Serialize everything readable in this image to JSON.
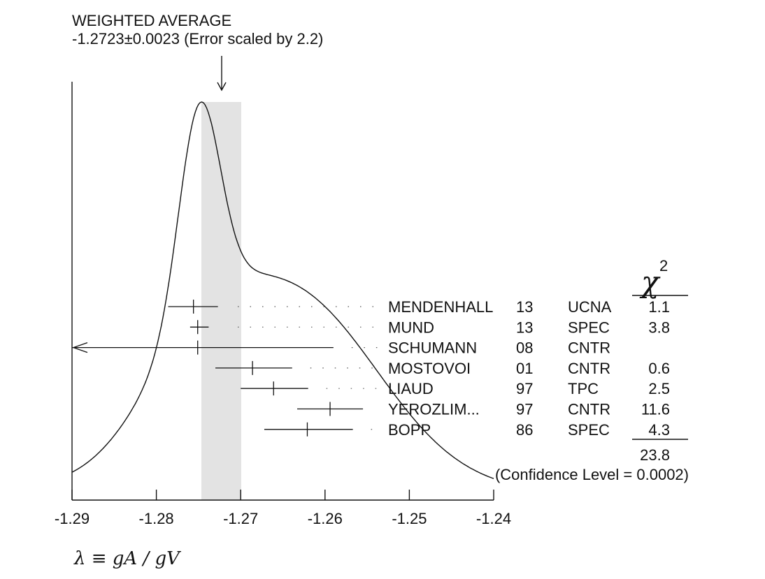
{
  "chart_data": {
    "type": "ideogram",
    "title": "WEIGHTED AVERAGE",
    "subtitle": "-1.2723±0.0023 (Error scaled by 2.2)",
    "average": {
      "value": -1.2723,
      "error": 0.0023,
      "band": [
        -1.2746,
        -1.27
      ]
    },
    "xlabel": "λ ≡ gA / gV",
    "xlim": [
      -1.29,
      -1.24
    ],
    "xticks": [
      -1.29,
      -1.28,
      -1.27,
      -1.26,
      -1.25,
      -1.24
    ],
    "xtick_labels": [
      "-1.29",
      "-1.28",
      "-1.27",
      "-1.26",
      "-1.25",
      "-1.24"
    ],
    "chi2_header": "χ",
    "chi2_superscript": "2",
    "measurements": [
      {
        "name": "MENDENHALL",
        "year": "13",
        "tech": "UCNA",
        "chi2": "1.1",
        "value": -1.2756,
        "lo": -1.2786,
        "hi": -1.2727
      },
      {
        "name": "MUND",
        "year": "13",
        "tech": "SPEC",
        "chi2": "3.8",
        "value": -1.2751,
        "lo": -1.276,
        "hi": -1.2738
      },
      {
        "name": "SCHUMANN",
        "year": "08",
        "tech": "CNTR",
        "chi2": "",
        "value": -1.2751,
        "lo": -1.29,
        "hi": -1.259,
        "off_scale_left": true
      },
      {
        "name": "MOSTOVOI",
        "year": "01",
        "tech": "CNTR",
        "chi2": "0.6",
        "value": -1.2686,
        "lo": -1.273,
        "hi": -1.2639
      },
      {
        "name": "LIAUD",
        "year": "97",
        "tech": "TPC",
        "chi2": "2.5",
        "value": -1.2661,
        "lo": -1.27,
        "hi": -1.262
      },
      {
        "name": "YEROZLIM...",
        "year": "97",
        "tech": "CNTR",
        "chi2": "11.6",
        "value": -1.2594,
        "lo": -1.2633,
        "hi": -1.2555
      },
      {
        "name": "BOPP",
        "year": "86",
        "tech": "SPEC",
        "chi2": "4.3",
        "value": -1.2621,
        "lo": -1.2672,
        "hi": -1.2567
      }
    ],
    "chi2_total": "23.8",
    "confidence_level": "(Confidence Level = 0.0002)"
  }
}
